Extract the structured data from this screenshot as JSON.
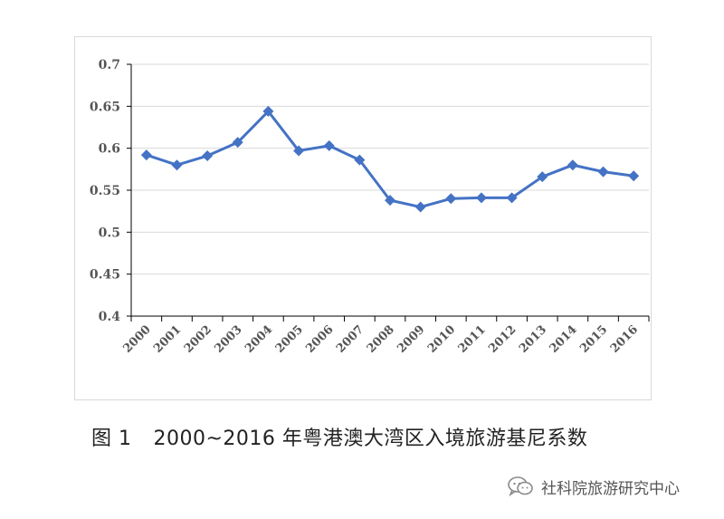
{
  "caption": {
    "figure_label": "图 1",
    "title": "2000~2016 年粤港澳大湾区入境旅游基尼系数"
  },
  "watermark": {
    "text": "社科院旅游研究中心",
    "icon": "wechat-icon"
  },
  "colors": {
    "series": "#4472c4",
    "grid": "#d9d9d9",
    "axis": "#000000",
    "frame": "#d9d9d9"
  },
  "chart_data": {
    "type": "line",
    "title": "",
    "xlabel": "",
    "ylabel": "",
    "categories": [
      "2000",
      "2001",
      "2002",
      "2003",
      "2004",
      "2005",
      "2006",
      "2007",
      "2008",
      "2009",
      "2010",
      "2011",
      "2012",
      "2013",
      "2014",
      "2015",
      "2016"
    ],
    "series": [
      {
        "marker": "diamond",
        "values": [
          0.592,
          0.58,
          0.591,
          0.607,
          0.644,
          0.597,
          0.603,
          0.586,
          0.538,
          0.53,
          0.54,
          0.541,
          0.541,
          0.566,
          0.58,
          0.572,
          0.567
        ]
      }
    ],
    "ylim": [
      0.4,
      0.7
    ],
    "yticks": [
      "0.4",
      "0.45",
      "0.5",
      "0.55",
      "0.6",
      "0.65",
      "0.7"
    ],
    "grid": true,
    "legend": "none"
  }
}
